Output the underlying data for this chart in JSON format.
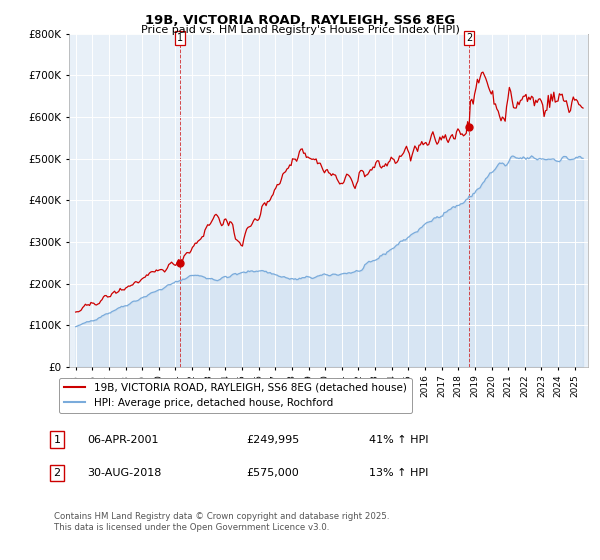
{
  "title": "19B, VICTORIA ROAD, RAYLEIGH, SS6 8EG",
  "subtitle": "Price paid vs. HM Land Registry's House Price Index (HPI)",
  "line1_label": "19B, VICTORIA ROAD, RAYLEIGH, SS6 8EG (detached house)",
  "line2_label": "HPI: Average price, detached house, Rochford",
  "line1_color": "#cc0000",
  "line2_color": "#7aabdb",
  "line1_fill_color": "#ddeeff",
  "annotation1_label": "1",
  "annotation2_label": "2",
  "annotation1_date": "06-APR-2001",
  "annotation1_price": "£249,995",
  "annotation1_hpi": "41% ↑ HPI",
  "annotation2_date": "30-AUG-2018",
  "annotation2_price": "£575,000",
  "annotation2_hpi": "13% ↑ HPI",
  "footer": "Contains HM Land Registry data © Crown copyright and database right 2025.\nThis data is licensed under the Open Government Licence v3.0.",
  "bg_color": "#e8f0f8",
  "ylim_max": 800000,
  "yticks": [
    0,
    100000,
    200000,
    300000,
    400000,
    500000,
    600000,
    700000,
    800000
  ]
}
